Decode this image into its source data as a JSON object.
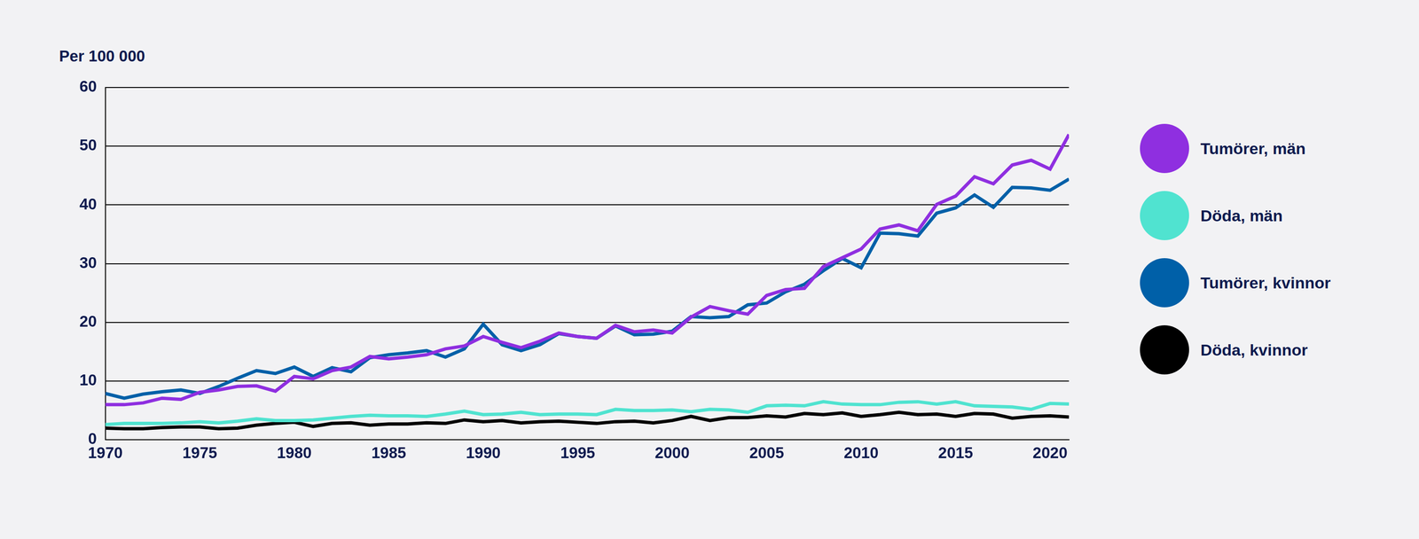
{
  "chart_data": {
    "type": "line",
    "y_label": "Per 100 000",
    "x": [
      1970,
      1971,
      1972,
      1973,
      1974,
      1975,
      1976,
      1977,
      1978,
      1979,
      1980,
      1981,
      1982,
      1983,
      1984,
      1985,
      1986,
      1987,
      1988,
      1989,
      1990,
      1991,
      1992,
      1993,
      1994,
      1995,
      1996,
      1997,
      1998,
      1999,
      2000,
      2001,
      2002,
      2003,
      2004,
      2005,
      2006,
      2007,
      2008,
      2009,
      2010,
      2011,
      2012,
      2013,
      2014,
      2015,
      2016,
      2017,
      2018,
      2019,
      2020,
      2021
    ],
    "xlim": [
      1970,
      2021
    ],
    "xticks": [
      1970,
      1975,
      1980,
      1985,
      1990,
      1995,
      2000,
      2005,
      2010,
      2015,
      2020
    ],
    "ylim": [
      0,
      60
    ],
    "yticks": [
      0,
      10,
      20,
      30,
      40,
      50,
      60
    ],
    "grid": true,
    "legend": "right",
    "series": [
      {
        "name": "Tumörer, män",
        "color": "#8f2fe0",
        "values": [
          6.0,
          6.0,
          6.3,
          7.1,
          6.9,
          8.1,
          8.5,
          9.1,
          9.2,
          8.3,
          10.8,
          10.4,
          11.8,
          12.4,
          14.2,
          13.8,
          14.1,
          14.5,
          15.5,
          16.0,
          17.6,
          16.6,
          15.7,
          16.8,
          18.2,
          17.6,
          17.3,
          19.5,
          18.4,
          18.7,
          18.2,
          20.9,
          22.7,
          22.0,
          21.4,
          24.6,
          25.6,
          25.8,
          29.5,
          31.0,
          32.5,
          35.9,
          36.6,
          35.6,
          40.1,
          41.5,
          44.8,
          43.6,
          46.8,
          47.6,
          46.1,
          52.0
        ]
      },
      {
        "name": "Döda, män",
        "color": "#50e3d0",
        "values": [
          2.6,
          2.8,
          2.8,
          2.8,
          2.9,
          3.1,
          2.9,
          3.2,
          3.6,
          3.3,
          3.3,
          3.4,
          3.7,
          4.0,
          4.2,
          4.1,
          4.1,
          4.0,
          4.4,
          4.9,
          4.3,
          4.4,
          4.7,
          4.3,
          4.4,
          4.4,
          4.3,
          5.2,
          5.0,
          5.0,
          5.1,
          4.8,
          5.2,
          5.1,
          4.7,
          5.8,
          5.9,
          5.8,
          6.5,
          6.1,
          6.0,
          6.0,
          6.4,
          6.5,
          6.1,
          6.5,
          5.8,
          5.7,
          5.6,
          5.2,
          6.2,
          6.1
        ]
      },
      {
        "name": "Tumörer, kvinnor",
        "color": "#0060a8",
        "values": [
          7.9,
          7.1,
          7.8,
          8.2,
          8.5,
          7.9,
          9.1,
          10.5,
          11.8,
          11.3,
          12.4,
          10.8,
          12.3,
          11.6,
          14.0,
          14.5,
          14.8,
          15.2,
          14.1,
          15.5,
          19.7,
          16.2,
          15.2,
          16.2,
          18.1,
          17.6,
          17.3,
          19.4,
          17.9,
          18.0,
          18.5,
          21.0,
          20.8,
          21.0,
          23.0,
          23.3,
          25.2,
          26.5,
          28.8,
          30.9,
          29.3,
          35.2,
          35.1,
          34.7,
          38.6,
          39.5,
          41.7,
          39.6,
          43.0,
          42.9,
          42.5,
          44.4
        ]
      },
      {
        "name": "Döda, kvinnor",
        "color": "#000000",
        "values": [
          2.0,
          1.9,
          1.9,
          2.1,
          2.2,
          2.2,
          1.9,
          2.0,
          2.5,
          2.8,
          3.0,
          2.3,
          2.8,
          2.9,
          2.5,
          2.7,
          2.7,
          2.9,
          2.8,
          3.4,
          3.1,
          3.3,
          2.9,
          3.1,
          3.2,
          3.0,
          2.8,
          3.1,
          3.2,
          2.9,
          3.3,
          4.0,
          3.3,
          3.8,
          3.8,
          4.1,
          3.9,
          4.5,
          4.3,
          4.6,
          4.0,
          4.3,
          4.7,
          4.3,
          4.4,
          4.0,
          4.5,
          4.4,
          3.7,
          4.0,
          4.1,
          3.9
        ]
      }
    ]
  }
}
